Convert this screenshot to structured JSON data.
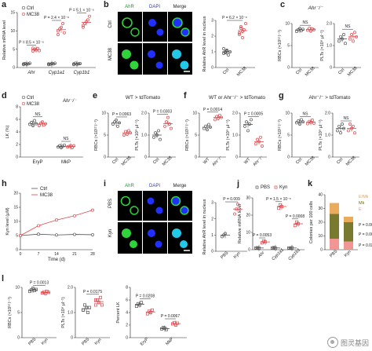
{
  "panels": {
    "a": {
      "letter": "a",
      "legend": [
        "Ctrl",
        "MC38"
      ],
      "ylabel": "Relative mRNA level",
      "genes": [
        "Ahr",
        "Cyp1a1",
        "Cyp1b1"
      ],
      "p": [
        "P = 8.5 × 10⁻⁶",
        "P = 2.4 × 10⁻⁸",
        "P = 5.1 × 10⁻⁶"
      ],
      "yticks": [
        "0",
        "5",
        "10",
        "15"
      ]
    },
    "b": {
      "letter": "b",
      "headers": [
        "AhR",
        "DAPI",
        "Merge"
      ],
      "rows": [
        "Ctrl",
        "MC38"
      ],
      "ylabel": "Relative AhR level in nucleus",
      "p": "P = 6.2 × 10⁻⁶",
      "xcats": [
        "Ctrl",
        "MC38"
      ],
      "yticks": [
        "0",
        "1",
        "2",
        "3"
      ]
    },
    "c": {
      "letter": "c",
      "title": "Ahr⁻/⁻",
      "ylabel1": "RBCs (×10¹² l⁻¹)",
      "ylabel2": "PLTs (×10⁹ µl⁻¹)",
      "ns": "NS",
      "yticks1": [
        "0",
        "5",
        "10"
      ],
      "yticks2": [
        "0",
        "1.0",
        "2.0"
      ],
      "xcats": [
        "Ctrl",
        "MC38"
      ]
    },
    "d": {
      "letter": "d",
      "legend": [
        "Ctrl",
        "MC38"
      ],
      "genotype": "Ahr⁻/⁻",
      "ylabel": "LK (%)",
      "ns": "NS",
      "xcats": [
        "EryP",
        "MkP"
      ],
      "yticks": [
        "0",
        "2",
        "4",
        "6",
        "8"
      ]
    },
    "e": {
      "letter": "e",
      "title": "WT > tdTomato",
      "ylabel1": "RBCs (×10¹² l⁻¹)",
      "ylabel2": "PLTs (×10⁹ µl⁻¹)",
      "p1": "P = 0.0063",
      "p2": "P = 0.0303",
      "xcats": [
        "Ctrl",
        "MC38"
      ],
      "yticks1": [
        "0",
        "5",
        "10"
      ],
      "yticks2": [
        "0",
        "1.0",
        "2.0"
      ]
    },
    "f": {
      "letter": "f",
      "title": "WT or Ahr⁻/⁻ > tdTomato",
      "ylabel1": "RBCs (×10¹² l⁻¹)",
      "ylabel2": "PLTs (×10⁹ µl⁻¹)",
      "p1": "P = 0.0014",
      "p2": "P = 0.0005",
      "xcats": [
        "WT",
        "Ahr⁻/⁻"
      ],
      "yticks1": [
        "0",
        "5",
        "10"
      ],
      "yticks2": [
        "0",
        "1.0",
        "2.0"
      ]
    },
    "g": {
      "letter": "g",
      "title": "Ahr⁻/⁻ > tdTomato",
      "ylabel1": "RBCs (×10¹² l⁻¹)",
      "ylabel2": "PLTs (×10⁹ µl⁻¹)",
      "ns": "NS",
      "xcats": [
        "Ctrl",
        "MC38"
      ],
      "yticks1": [
        "0",
        "5",
        "10"
      ],
      "yticks2": [
        "0",
        "1.0",
        "2.0"
      ]
    },
    "h": {
      "letter": "h",
      "legend": [
        "Ctrl",
        "MC38"
      ],
      "ylabel": "Kyn level (µM)",
      "xlabel": "Time (d)",
      "xticks": [
        "0",
        "7",
        "14",
        "21",
        "28"
      ],
      "yticks": [
        "0",
        "5",
        "10",
        "15",
        "20"
      ]
    },
    "i": {
      "letter": "i",
      "headers": [
        "AhR",
        "DAPI",
        "Merge"
      ],
      "rows": [
        "PBS",
        "Kyn"
      ],
      "ylabel": "Relative AhR level in nucleus",
      "p": "P = 0.009",
      "xcats": [
        "PBS",
        "Kyn"
      ],
      "yticks": [
        "0",
        "1",
        "2",
        "3"
      ]
    },
    "j": {
      "letter": "j",
      "legend": [
        "PBS",
        "Kyn"
      ],
      "ylabel": "Relative mRNA level",
      "genes": [
        "Ahr",
        "Cyp1a1",
        "Cyp1b1"
      ],
      "p": [
        "P = 0.0053",
        "P = 1.5 × 10⁻⁶",
        "P = 0.0008"
      ],
      "yticks": [
        "0",
        "10",
        "20",
        "30"
      ]
    },
    "k": {
      "letter": "k",
      "ylabel": "Colonies per 100 cells",
      "legend": [
        "E/Mk",
        "Mk",
        "E"
      ],
      "p": [
        "P = 0.0010",
        "P = 0.0007",
        "P = 0.022"
      ],
      "xcats": [
        "PBS",
        "Kyn"
      ],
      "yticks": [
        "0",
        "10",
        "20",
        "30",
        "40"
      ]
    },
    "l": {
      "letter": "l",
      "ylabel1": "RBCs (×10¹² l⁻¹)",
      "ylabel2": "PLTs (×10⁹ µl⁻¹)",
      "ylabel3": "Percent LK",
      "p1": "P = 0.0013",
      "p2": "P = 0.0175",
      "p3a": "P = 0.0208",
      "p3b": "P = 0.0067",
      "xcats": [
        "PBS",
        "Kyn"
      ],
      "xcats3": [
        "EryP",
        "MkP"
      ],
      "yticks1": [
        "0",
        "5",
        "10"
      ],
      "yticks2": [
        "0",
        "1.0",
        "2.0"
      ],
      "yticks3": [
        "0",
        "2",
        "4",
        "6",
        "8"
      ]
    }
  },
  "colors": {
    "ctrl": "#555555",
    "case": "#e0474c",
    "stack_e": "#f08a8a",
    "stack_mk": "#6a6a1a",
    "stack_emk": "#e8a34a"
  },
  "watermark": "图灵基因"
}
